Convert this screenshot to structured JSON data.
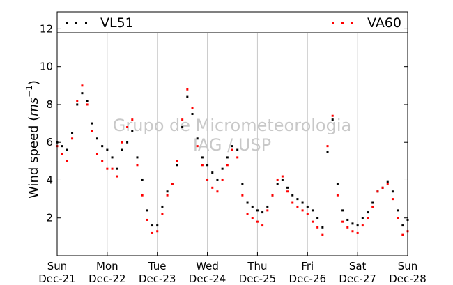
{
  "chart_data": {
    "type": "scatter",
    "ylabel": "Wind speed",
    "ylabel_unit_base": "ms",
    "ylabel_unit_exp": "−1",
    "ylim": [
      0,
      12.9
    ],
    "yticks": [
      2,
      4,
      6,
      8,
      10,
      12
    ],
    "xlim": [
      0,
      7
    ],
    "x_unit": "days from Sun Dec-21",
    "xticks": [
      {
        "day": "Sun",
        "date": "Dec-21"
      },
      {
        "day": "Mon",
        "date": "Dec-22"
      },
      {
        "day": "Tue",
        "date": "Dec-23"
      },
      {
        "day": "Wed",
        "date": "Dec-24"
      },
      {
        "day": "Thu",
        "date": "Dec-25"
      },
      {
        "day": "Fri",
        "date": "Dec-26"
      },
      {
        "day": "Sat",
        "date": "Dec-27"
      },
      {
        "day": "Sun",
        "date": "Dec-28"
      }
    ],
    "grid": "vertical",
    "legend_placement": "top",
    "watermark": [
      "Grupo de Micrometeorologia",
      "IAG / USP"
    ],
    "series": [
      {
        "name": "VL51",
        "color": "#000000",
        "x": [
          0.0,
          0.1,
          0.2,
          0.3,
          0.4,
          0.5,
          0.6,
          0.7,
          0.8,
          0.9,
          1.0,
          1.1,
          1.2,
          1.3,
          1.4,
          1.5,
          1.6,
          1.7,
          1.8,
          1.9,
          2.0,
          2.1,
          2.2,
          2.3,
          2.4,
          2.5,
          2.6,
          2.7,
          2.8,
          2.9,
          3.0,
          3.1,
          3.2,
          3.3,
          3.4,
          3.5,
          3.6,
          3.7,
          3.8,
          3.9,
          4.0,
          4.1,
          4.2,
          4.3,
          4.4,
          4.5,
          4.6,
          4.7,
          4.8,
          4.9,
          5.0,
          5.1,
          5.2,
          5.3,
          5.4,
          5.5,
          5.6,
          5.7,
          5.8,
          5.9,
          6.0,
          6.1,
          6.2,
          6.3,
          6.4,
          6.5,
          6.6,
          6.7,
          6.8,
          6.9,
          7.0
        ],
        "values": [
          6.0,
          5.8,
          5.6,
          6.5,
          8.0,
          8.6,
          8.2,
          7.0,
          6.2,
          5.8,
          5.6,
          5.2,
          4.6,
          5.6,
          6.0,
          6.6,
          5.2,
          4.0,
          2.4,
          1.6,
          1.6,
          2.6,
          3.4,
          3.8,
          4.8,
          6.8,
          8.4,
          7.5,
          6.2,
          5.2,
          4.8,
          4.4,
          4.0,
          4.6,
          5.2,
          5.8,
          5.6,
          3.8,
          2.8,
          2.6,
          2.4,
          2.3,
          2.6,
          3.2,
          3.8,
          4.0,
          3.6,
          3.2,
          3.0,
          2.8,
          2.6,
          2.4,
          2.0,
          1.5,
          5.5,
          7.2,
          3.8,
          2.4,
          1.9,
          1.7,
          1.6,
          2.0,
          2.3,
          2.8,
          3.4,
          3.6,
          3.9,
          3.4,
          2.4,
          1.6,
          1.9
        ]
      },
      {
        "name": "VA60",
        "color": "#ff0000",
        "x": [
          0.0,
          0.1,
          0.2,
          0.3,
          0.4,
          0.5,
          0.6,
          0.7,
          0.8,
          0.9,
          1.0,
          1.1,
          1.2,
          1.3,
          1.4,
          1.5,
          1.6,
          1.7,
          1.8,
          1.9,
          2.0,
          2.1,
          2.2,
          2.3,
          2.4,
          2.5,
          2.6,
          2.7,
          2.8,
          2.9,
          3.0,
          3.1,
          3.2,
          3.3,
          3.4,
          3.5,
          3.6,
          3.7,
          3.8,
          3.9,
          4.0,
          4.1,
          4.2,
          4.3,
          4.4,
          4.5,
          4.6,
          4.7,
          4.8,
          4.9,
          5.0,
          5.1,
          5.2,
          5.3,
          5.4,
          5.5,
          5.6,
          5.7,
          5.8,
          5.9,
          6.0,
          6.1,
          6.2,
          6.3,
          6.4,
          6.5,
          6.6,
          6.7,
          6.8,
          6.9,
          7.0
        ],
        "values": [
          5.8,
          5.4,
          5.0,
          6.2,
          8.2,
          9.0,
          8.0,
          6.6,
          5.4,
          5.0,
          4.6,
          4.6,
          4.2,
          6.0,
          6.8,
          7.2,
          4.8,
          3.2,
          1.9,
          1.2,
          1.3,
          2.2,
          3.2,
          3.8,
          5.0,
          7.2,
          8.8,
          7.8,
          5.8,
          4.8,
          4.0,
          3.6,
          3.4,
          4.0,
          4.8,
          5.6,
          5.2,
          3.2,
          2.2,
          2.0,
          1.8,
          1.6,
          2.4,
          3.2,
          4.0,
          4.2,
          3.4,
          2.8,
          2.6,
          2.4,
          2.2,
          1.8,
          1.5,
          1.1,
          5.8,
          7.4,
          3.2,
          1.8,
          1.5,
          1.3,
          1.2,
          1.6,
          2.0,
          2.6,
          3.4,
          3.6,
          3.8,
          3.0,
          2.0,
          1.1,
          1.3
        ]
      }
    ]
  }
}
